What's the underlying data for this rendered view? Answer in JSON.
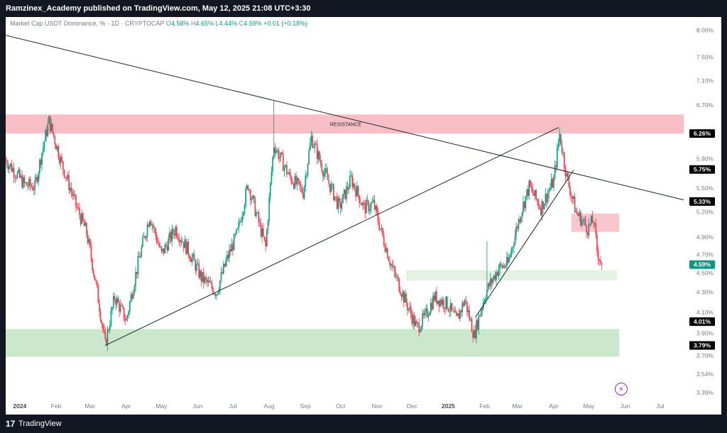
{
  "header": {
    "title": "Ramzinex_Academy published on TradingView.com, May 12, 2025 21:08 UTC+3:30"
  },
  "legend": {
    "symbol": "Market Cap USDT Dominance, % · 1D · CRYPTOCAP",
    "open_label": "O",
    "open": "4.58%",
    "high_label": "H",
    "high": "4.65%",
    "low_label": "L",
    "low": "4.44%",
    "close_label": "C",
    "close": "4.59%",
    "change": "+0.01 (+0.18%)"
  },
  "footer": {
    "brand": "TradingView",
    "logo_glyph": "17"
  },
  "colors": {
    "up": "#089981",
    "down": "#f23645",
    "resistance_zone": "#f8bbc3",
    "support_zone": "#c8e6c9",
    "small_resistance_zone": "#f8c4ca",
    "small_support_zone": "#e3f1e3",
    "trendline": "#1e222d"
  },
  "chart_data": {
    "type": "candlestick",
    "x_axis": {
      "labels": [
        "2024",
        "Feb",
        "Mar",
        "Apr",
        "May",
        "Jun",
        "Jul",
        "Aug",
        "Sep",
        "Oct",
        "Nov",
        "Dec",
        "2025",
        "Feb",
        "Mar",
        "Apr",
        "May",
        "Jun",
        "Jul"
      ],
      "dates": [
        "2024-01-01",
        "2024-02-01",
        "2024-03-01",
        "2024-04-01",
        "2024-05-01",
        "2024-06-01",
        "2024-07-01",
        "2024-08-01",
        "2024-09-01",
        "2024-10-01",
        "2024-11-01",
        "2024-12-01",
        "2025-01-01",
        "2025-02-01",
        "2025-03-01",
        "2025-04-01",
        "2025-05-01",
        "2025-06-01",
        "2025-07-01"
      ],
      "range": [
        "2023-12-20",
        "2025-07-21"
      ]
    },
    "y_axis": {
      "scale": "log",
      "unit": "%",
      "tick_labels": [
        "8.00%",
        "7.50%",
        "7.10%",
        "6.70%",
        "5.90%",
        "5.50%",
        "5.20%",
        "4.90%",
        "4.70%",
        "4.50%",
        "4.30%",
        "4.10%",
        "3.90%",
        "3.70%",
        "3.54%",
        "3.39%"
      ],
      "ticks": [
        8.0,
        7.5,
        7.1,
        6.7,
        5.9,
        5.5,
        5.2,
        4.9,
        4.7,
        4.5,
        4.3,
        4.1,
        3.9,
        3.7,
        3.54,
        3.39
      ],
      "range": [
        3.3,
        8.25
      ]
    },
    "price_tags": [
      {
        "label": "6.26%",
        "value": 6.26,
        "style": "dark"
      },
      {
        "label": "5.75%",
        "value": 5.75,
        "style": "dark"
      },
      {
        "label": "5.33%",
        "value": 5.33,
        "style": "dark"
      },
      {
        "label": "4.59%",
        "value": 4.59,
        "style": "green"
      },
      {
        "label": "4.01%",
        "value": 4.01,
        "style": "dark"
      },
      {
        "label": "3.79%",
        "value": 3.79,
        "style": "dark"
      }
    ],
    "zones": [
      {
        "kind": "resistance",
        "from": "2023-12-20",
        "to": "2025-07-21",
        "low": 6.26,
        "high": 6.55,
        "label": "RESISTANCE"
      },
      {
        "kind": "resistance",
        "from": "2025-04-16",
        "to": "2025-05-27",
        "low": 4.96,
        "high": 5.18,
        "label": ""
      },
      {
        "kind": "support",
        "from": "2024-11-26",
        "to": "2025-05-25",
        "low": 4.42,
        "high": 4.53,
        "label": ""
      },
      {
        "kind": "support",
        "from": "2023-12-20",
        "to": "2025-05-27",
        "low": 3.69,
        "high": 3.94,
        "label": ""
      }
    ],
    "trendlines": [
      {
        "from": [
          "2023-12-20",
          7.9
        ],
        "to": [
          "2025-07-21",
          5.35
        ]
      },
      {
        "from": [
          "2024-03-14",
          3.79
        ],
        "to": [
          "2025-04-05",
          6.35
        ]
      },
      {
        "from": [
          "2025-01-24",
          4.05
        ],
        "to": [
          "2025-04-18",
          5.74
        ]
      }
    ],
    "anchors": [
      {
        "date": "2023-12-20",
        "value": 5.88
      },
      {
        "date": "2024-01-05",
        "value": 5.55
      },
      {
        "date": "2024-01-14",
        "value": 5.52
      },
      {
        "date": "2024-01-22",
        "value": 6.15
      },
      {
        "date": "2024-01-26",
        "value": 6.45
      },
      {
        "date": "2024-02-06",
        "value": 5.82
      },
      {
        "date": "2024-02-18",
        "value": 5.28
      },
      {
        "date": "2024-02-27",
        "value": 4.95
      },
      {
        "date": "2024-03-06",
        "value": 4.38
      },
      {
        "date": "2024-03-14",
        "value": 3.79
      },
      {
        "date": "2024-03-22",
        "value": 4.25
      },
      {
        "date": "2024-04-01",
        "value": 4.02
      },
      {
        "date": "2024-04-11",
        "value": 4.6
      },
      {
        "date": "2024-04-21",
        "value": 5.15
      },
      {
        "date": "2024-05-01",
        "value": 4.7
      },
      {
        "date": "2024-05-13",
        "value": 5.0
      },
      {
        "date": "2024-05-24",
        "value": 4.74
      },
      {
        "date": "2024-06-04",
        "value": 4.45
      },
      {
        "date": "2024-06-17",
        "value": 4.3
      },
      {
        "date": "2024-06-26",
        "value": 4.65
      },
      {
        "date": "2024-07-05",
        "value": 4.95
      },
      {
        "date": "2024-07-14",
        "value": 5.55
      },
      {
        "date": "2024-07-22",
        "value": 5.12
      },
      {
        "date": "2024-07-29",
        "value": 4.78
      },
      {
        "date": "2024-08-05",
        "value": 6.1
      },
      {
        "date": "2024-08-18",
        "value": 5.66
      },
      {
        "date": "2024-08-30",
        "value": 5.45
      },
      {
        "date": "2024-09-06",
        "value": 6.2
      },
      {
        "date": "2024-09-16",
        "value": 5.75
      },
      {
        "date": "2024-09-30",
        "value": 5.25
      },
      {
        "date": "2024-10-10",
        "value": 5.62
      },
      {
        "date": "2024-10-21",
        "value": 5.25
      },
      {
        "date": "2024-10-29",
        "value": 5.3
      },
      {
        "date": "2024-11-06",
        "value": 4.9
      },
      {
        "date": "2024-11-14",
        "value": 4.55
      },
      {
        "date": "2024-11-25",
        "value": 4.22
      },
      {
        "date": "2024-12-05",
        "value": 3.95
      },
      {
        "date": "2024-12-12",
        "value": 4.05
      },
      {
        "date": "2024-12-20",
        "value": 4.25
      },
      {
        "date": "2024-12-31",
        "value": 4.18
      },
      {
        "date": "2025-01-08",
        "value": 4.02
      },
      {
        "date": "2025-01-15",
        "value": 4.22
      },
      {
        "date": "2025-01-23",
        "value": 3.88
      },
      {
        "date": "2025-02-02",
        "value": 4.3
      },
      {
        "date": "2025-02-13",
        "value": 4.55
      },
      {
        "date": "2025-02-21",
        "value": 4.6
      },
      {
        "date": "2025-03-03",
        "value": 5.15
      },
      {
        "date": "2025-03-11",
        "value": 5.52
      },
      {
        "date": "2025-03-21",
        "value": 5.25
      },
      {
        "date": "2025-04-01",
        "value": 5.6
      },
      {
        "date": "2025-04-06",
        "value": 6.25
      },
      {
        "date": "2025-04-12",
        "value": 5.65
      },
      {
        "date": "2025-04-20",
        "value": 5.2
      },
      {
        "date": "2025-04-30",
        "value": 5.0
      },
      {
        "date": "2025-05-05",
        "value": 5.1
      },
      {
        "date": "2025-05-08",
        "value": 4.75
      },
      {
        "date": "2025-05-12",
        "value": 4.59
      }
    ],
    "spikes": [
      {
        "date": "2024-08-05",
        "high": 6.78
      },
      {
        "date": "2025-02-03",
        "high": 4.85
      },
      {
        "date": "2025-04-06",
        "high": 6.35
      }
    ]
  }
}
